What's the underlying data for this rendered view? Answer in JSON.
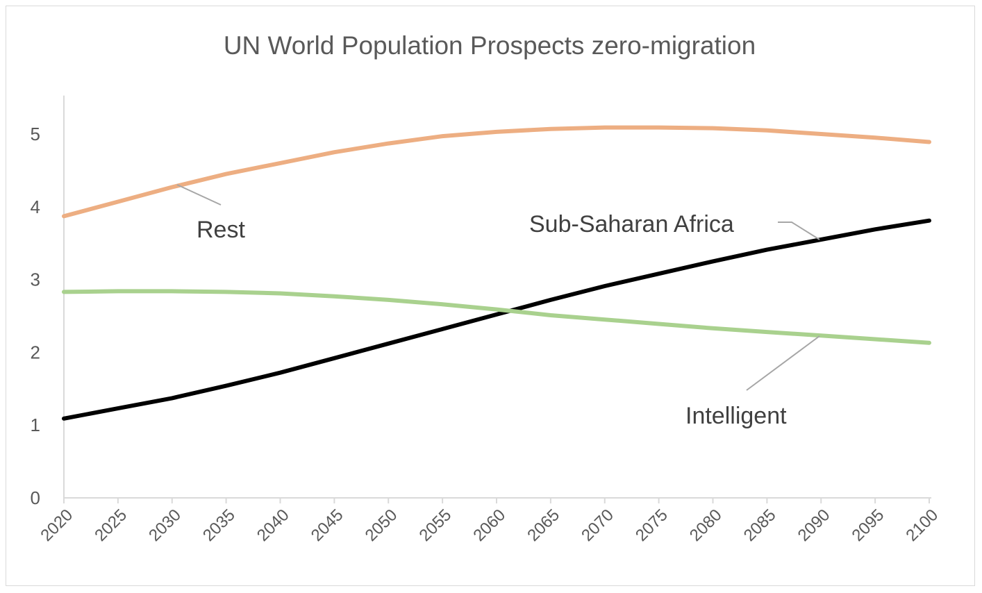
{
  "chart_data": {
    "type": "line",
    "title": "UN World Population Prospects zero-migration",
    "xlabel": "",
    "ylabel": "",
    "x": [
      2020,
      2025,
      2030,
      2035,
      2040,
      2045,
      2050,
      2055,
      2060,
      2065,
      2070,
      2075,
      2080,
      2085,
      2090,
      2095,
      2100
    ],
    "x_tick_labels": [
      "2020",
      "2025",
      "2030",
      "2035",
      "2040",
      "2045",
      "2050",
      "2055",
      "2060",
      "2065",
      "2070",
      "2075",
      "2080",
      "2085",
      "2090",
      "2095",
      "2100"
    ],
    "y_tick_labels": [
      "0",
      "1",
      "2",
      "3",
      "4",
      "5"
    ],
    "ylim": [
      0,
      5.5
    ],
    "xlim": [
      2020,
      2100
    ],
    "grid": false,
    "legend": "none (inline labels)",
    "series": [
      {
        "name": "Rest",
        "color": "#EDAE82",
        "values": [
          3.87,
          4.07,
          4.27,
          4.45,
          4.6,
          4.75,
          4.87,
          4.97,
          5.03,
          5.07,
          5.09,
          5.09,
          5.08,
          5.05,
          5.0,
          4.95,
          4.89
        ]
      },
      {
        "name": "Sub-Saharan Africa",
        "color": "#000000",
        "values": [
          1.09,
          1.23,
          1.37,
          1.54,
          1.72,
          1.92,
          2.12,
          2.32,
          2.52,
          2.72,
          2.91,
          3.08,
          3.25,
          3.41,
          3.55,
          3.69,
          3.81
        ]
      },
      {
        "name": "Intelligent",
        "color": "#A9D18E",
        "values": [
          2.83,
          2.84,
          2.84,
          2.83,
          2.81,
          2.77,
          2.72,
          2.66,
          2.59,
          2.51,
          2.45,
          2.39,
          2.33,
          2.28,
          2.23,
          2.18,
          2.13
        ]
      }
    ]
  }
}
